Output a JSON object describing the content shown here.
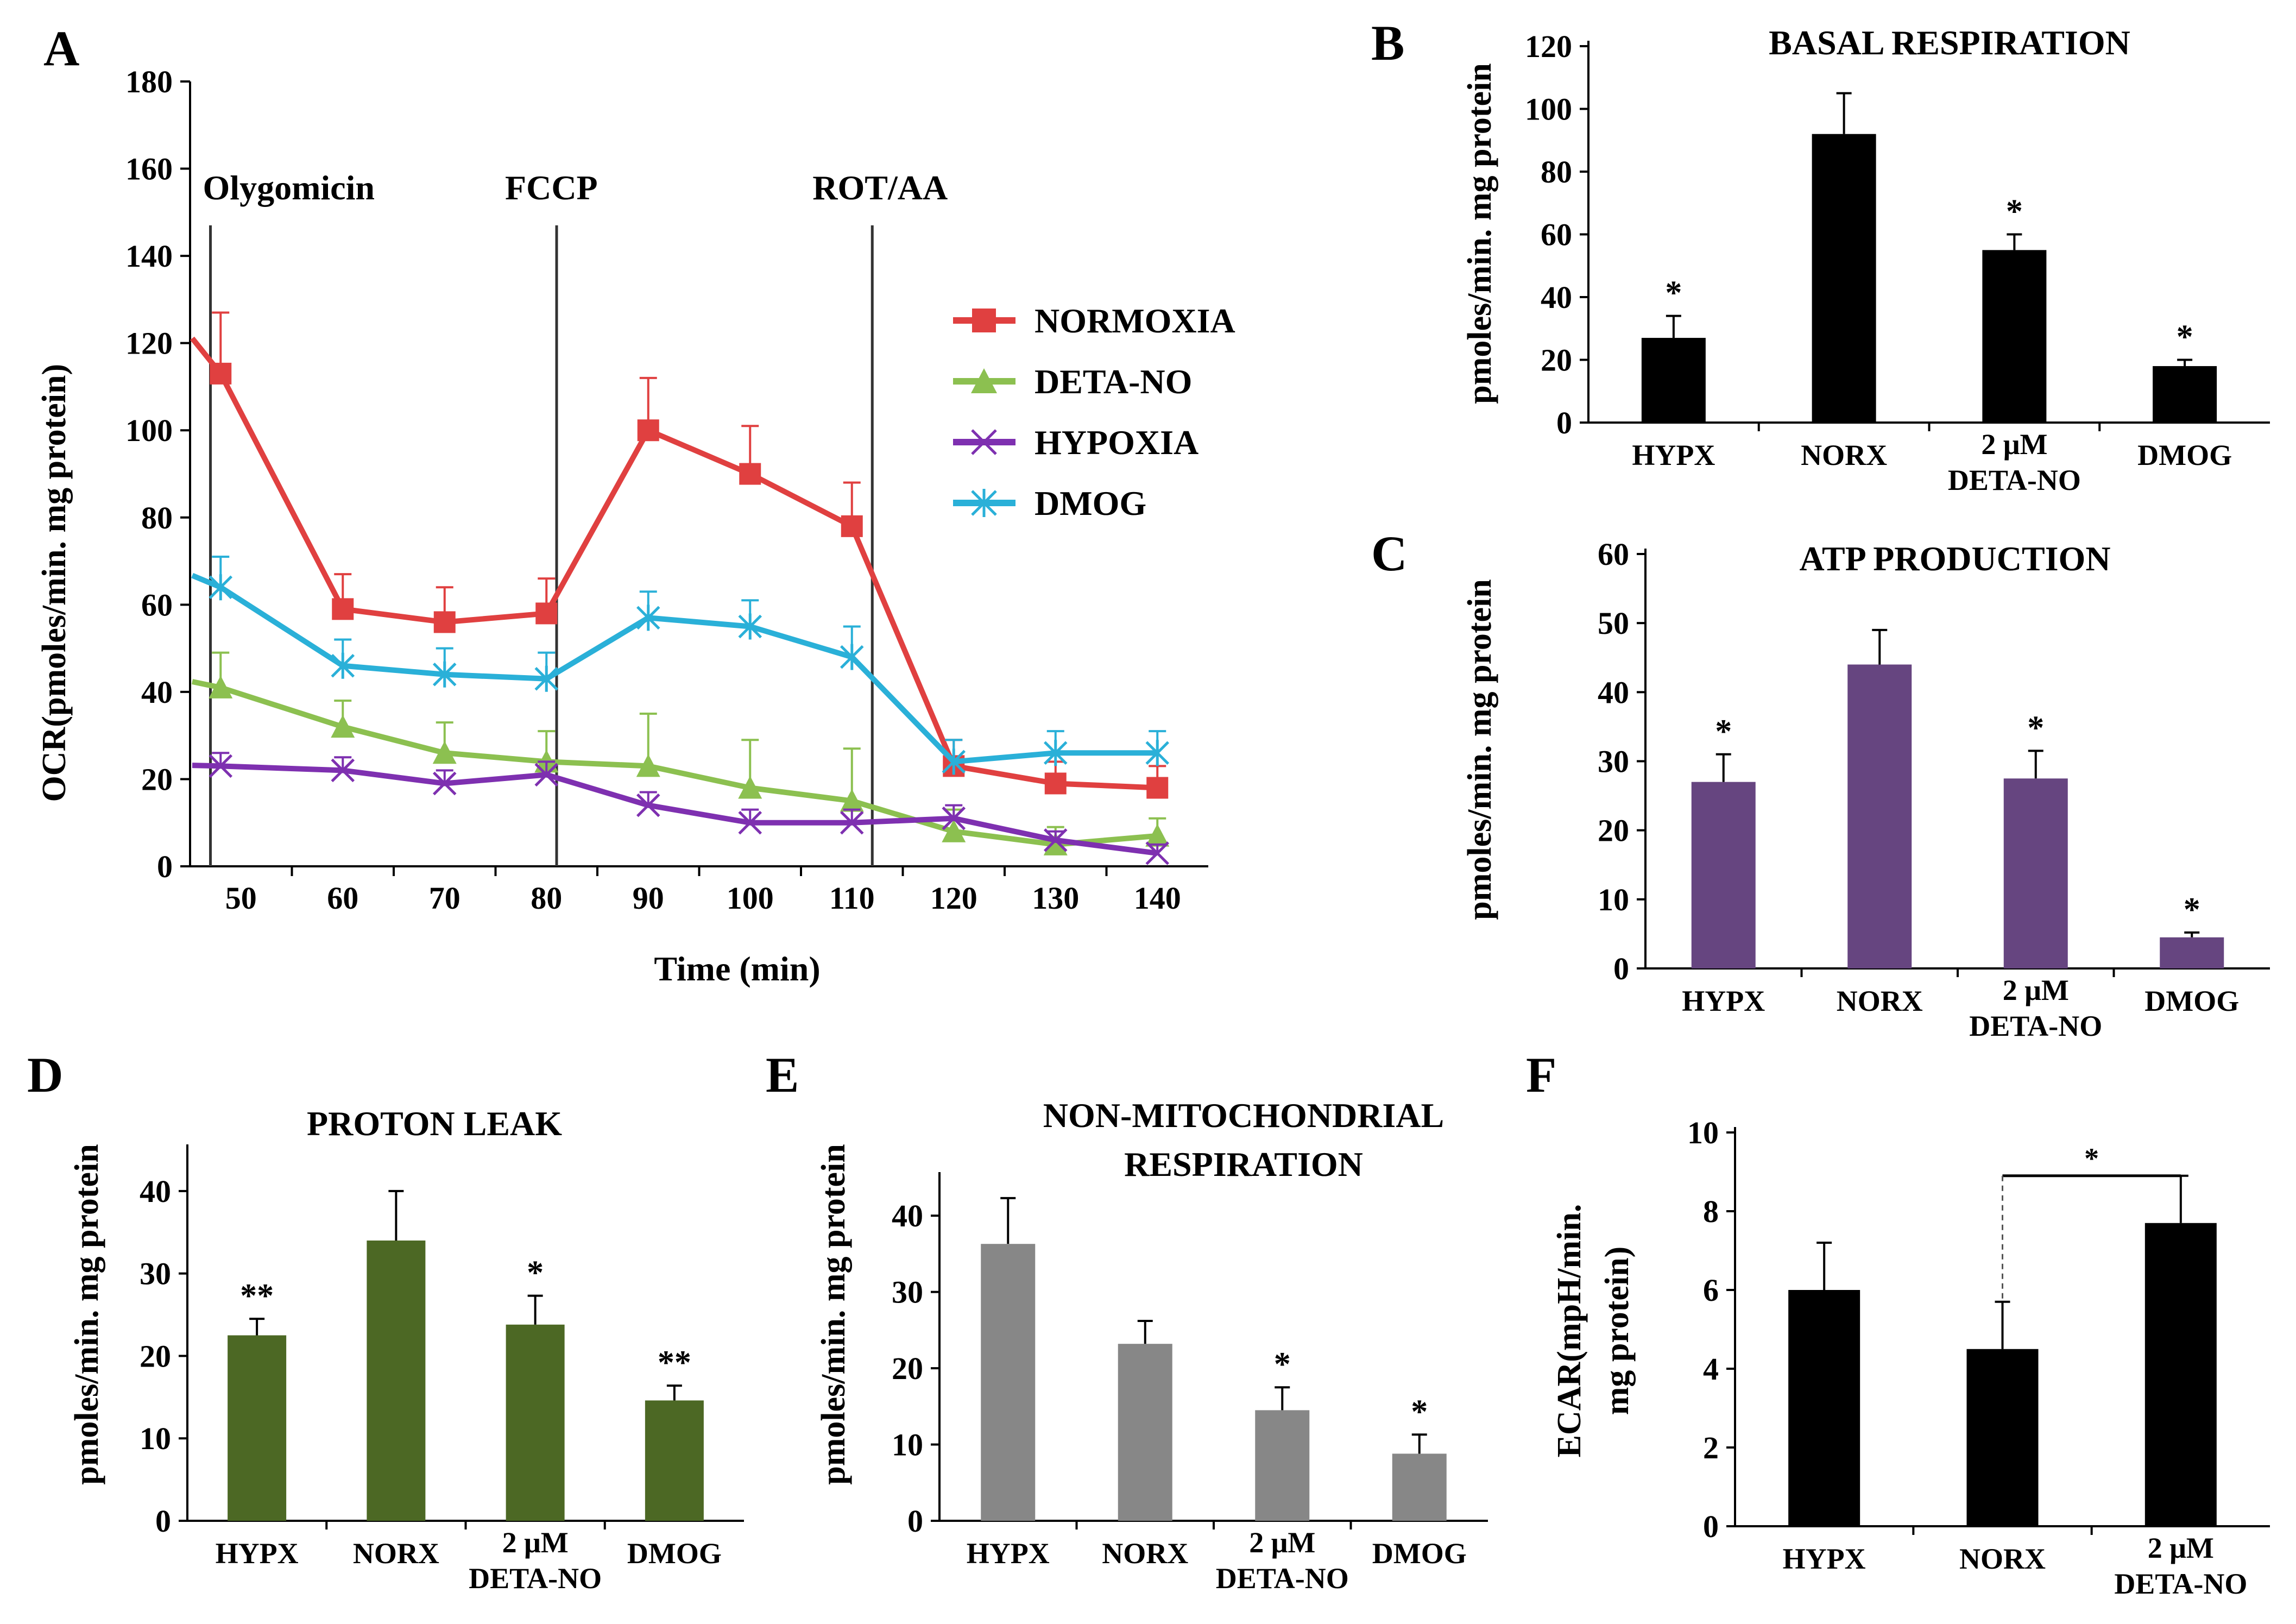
{
  "chart_data": [
    {
      "id": "A",
      "type": "line",
      "panel_label": "A",
      "xlabel": "Time (min)",
      "ylabel": "OCR(pmoles/min. mg protein)",
      "xlim": [
        45,
        145
      ],
      "ylim": [
        0,
        180
      ],
      "x_ticks": [
        50,
        60,
        70,
        80,
        90,
        100,
        110,
        120,
        130,
        140
      ],
      "y_ticks": [
        0,
        20,
        40,
        60,
        80,
        100,
        120,
        140,
        160,
        180
      ],
      "x": [
        48,
        60,
        70,
        80,
        90,
        100,
        110,
        120,
        130,
        140
      ],
      "injections": [
        {
          "label": "Olygomicin",
          "x": 47
        },
        {
          "label": "FCCP",
          "x": 81
        },
        {
          "label": "ROT/AA",
          "x": 112
        }
      ],
      "legend_position": "right",
      "series": [
        {
          "name": "NORMOXIA",
          "color": "#e04040",
          "marker": "square",
          "values": [
            113,
            59,
            56,
            58,
            100,
            90,
            78,
            23,
            19,
            18
          ],
          "errors": [
            14,
            8,
            8,
            8,
            12,
            11,
            10,
            6,
            5,
            5
          ]
        },
        {
          "name": "DETA-NO",
          "color": "#8cc050",
          "marker": "triangle",
          "values": [
            41,
            32,
            26,
            24,
            23,
            18,
            15,
            8,
            5,
            7
          ],
          "errors": [
            8,
            6,
            7,
            7,
            12,
            11,
            12,
            5,
            4,
            4
          ]
        },
        {
          "name": "HYPOXIA",
          "color": "#7e30b0",
          "marker": "x",
          "values": [
            23,
            22,
            19,
            21,
            14,
            10,
            10,
            11,
            6,
            3
          ],
          "errors": [
            3,
            3,
            3,
            3,
            3,
            3,
            3,
            3,
            2,
            2
          ]
        },
        {
          "name": "DMOG",
          "color": "#2ab0d8",
          "marker": "asterisk",
          "values": [
            64,
            46,
            44,
            43,
            57,
            55,
            48,
            24,
            26,
            26
          ],
          "errors": [
            7,
            6,
            6,
            6,
            6,
            6,
            7,
            5,
            5,
            5
          ]
        }
      ]
    },
    {
      "id": "B",
      "type": "bar",
      "panel_label": "B",
      "title": "BASAL RESPIRATION",
      "ylabel": "pmoles/min. mg protein",
      "ylim": [
        0,
        120
      ],
      "y_ticks": [
        0,
        20,
        40,
        60,
        80,
        100,
        120
      ],
      "color": "#000000",
      "categories": [
        [
          "HYPX"
        ],
        [
          "NORX"
        ],
        [
          "2 μM",
          "DETA-NO"
        ],
        [
          "DMOG"
        ]
      ],
      "values": [
        27,
        92,
        55,
        18
      ],
      "errors": [
        7,
        13,
        5,
        2
      ],
      "significance": [
        "*",
        "",
        "*",
        "*"
      ]
    },
    {
      "id": "C",
      "type": "bar",
      "panel_label": "C",
      "title": "ATP PRODUCTION",
      "ylabel": "pmoles/min. mg protein",
      "ylim": [
        0,
        60
      ],
      "y_ticks": [
        0,
        10,
        20,
        30,
        40,
        50,
        60
      ],
      "color": "#664580",
      "categories": [
        [
          "HYPX"
        ],
        [
          "NORX"
        ],
        [
          "2 μM",
          "DETA-NO"
        ],
        [
          "DMOG"
        ]
      ],
      "values": [
        27,
        44,
        27.5,
        4.5
      ],
      "errors": [
        4,
        5,
        4,
        0.7
      ],
      "significance": [
        "*",
        "",
        "*",
        "*"
      ]
    },
    {
      "id": "D",
      "type": "bar",
      "panel_label": "D",
      "title": "PROTON LEAK",
      "ylabel": "pmoles/min. mg protein",
      "ylim": [
        0,
        45
      ],
      "y_ticks": [
        0,
        10,
        20,
        30,
        40
      ],
      "color": "#4c6824",
      "categories": [
        [
          "HYPX"
        ],
        [
          "NORX"
        ],
        [
          "2 μM",
          "DETA-NO"
        ],
        [
          "DMOG"
        ]
      ],
      "values": [
        22.5,
        34,
        23.8,
        14.6
      ],
      "errors": [
        2,
        6,
        3.5,
        1.8
      ],
      "significance": [
        "**",
        "",
        "*",
        "**"
      ]
    },
    {
      "id": "E",
      "type": "bar",
      "panel_label": "E",
      "title": "NON-MITOCHONDRIAL RESPIRATION",
      "title_lines": [
        "NON-MITOCHONDRIAL",
        "RESPIRATION"
      ],
      "ylabel": "pmoles/min. mg protein",
      "ylim": [
        0,
        45
      ],
      "y_ticks": [
        0,
        10,
        20,
        30,
        40
      ],
      "color": "#878787",
      "categories": [
        [
          "HYPX"
        ],
        [
          "NORX"
        ],
        [
          "2 μM",
          "DETA-NO"
        ],
        [
          "DMOG"
        ]
      ],
      "values": [
        36.3,
        23.2,
        14.5,
        8.8
      ],
      "errors": [
        6,
        3,
        3,
        2.5
      ],
      "significance": [
        "",
        "",
        "*",
        "*"
      ]
    },
    {
      "id": "F",
      "type": "bar",
      "panel_label": "F",
      "title": "",
      "ylabel": "ECAR(mpH/min. mg protein)",
      "ylabel_lines": [
        "ECAR(mpH/min.",
        "mg protein)"
      ],
      "ylim": [
        0,
        10
      ],
      "y_ticks": [
        0,
        2,
        4,
        6,
        8,
        10
      ],
      "color": "#000000",
      "categories": [
        [
          "HYPX"
        ],
        [
          "NORX"
        ],
        [
          "2 μM",
          "DETA-NO"
        ]
      ],
      "values": [
        6.0,
        4.5,
        7.7
      ],
      "errors": [
        1.2,
        1.2,
        1.2
      ],
      "significance": [
        "",
        "",
        ""
      ],
      "comparison": {
        "from": 1,
        "to": 2,
        "label": "*"
      }
    }
  ]
}
